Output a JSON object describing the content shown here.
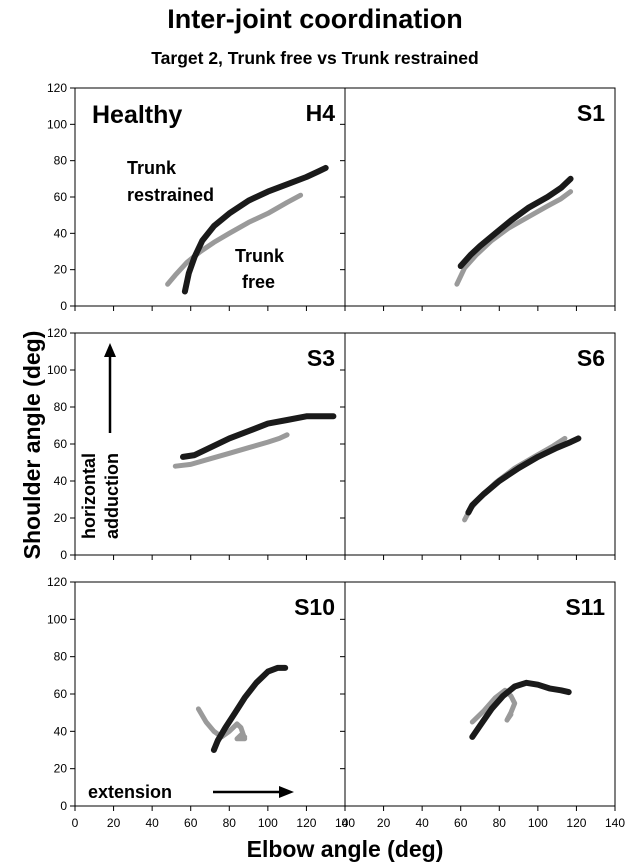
{
  "title": "Inter-joint coordination",
  "subtitle": "Target 2, Trunk free vs Trunk restrained",
  "chart_data": {
    "type": "line",
    "xlabel": "Elbow angle (deg)",
    "ylabel": "Shoulder angle (deg)",
    "xlim": [
      0,
      140
    ],
    "ylim": [
      0,
      120
    ],
    "xticks": [
      "0",
      "20",
      "40",
      "60",
      "80",
      "100",
      "120",
      "140"
    ],
    "yticks": [
      "0",
      "20",
      "40",
      "60",
      "80",
      "100",
      "120"
    ],
    "colors": {
      "trunk_restrained": "#1a1a1a",
      "trunk_free": "#9a9a9a"
    },
    "panels": [
      {
        "label": "H4",
        "annotations": {
          "group": "Healthy",
          "restrained": [
            "Trunk",
            "restrained"
          ],
          "free": [
            "Trunk",
            "free"
          ]
        },
        "series": [
          {
            "key": "trunk_restrained",
            "x": [
              57,
              59,
              62,
              66,
              72,
              80,
              90,
              100,
              110,
              120,
              126,
              130
            ],
            "y": [
              8,
              18,
              27,
              36,
              44,
              51,
              58,
              63,
              67,
              71,
              74,
              76
            ]
          },
          {
            "key": "trunk_free",
            "x": [
              48,
              52,
              58,
              65,
              72,
              80,
              90,
              100,
              110,
              117
            ],
            "y": [
              12,
              17,
              24,
              30,
              35,
              40,
              46,
              51,
              57,
              61
            ]
          }
        ]
      },
      {
        "label": "S1",
        "series": [
          {
            "key": "trunk_restrained",
            "x": [
              60,
              65,
              70,
              78,
              86,
              95,
              105,
              112,
              117
            ],
            "y": [
              22,
              28,
              33,
              40,
              47,
              54,
              60,
              65,
              70
            ]
          },
          {
            "key": "trunk_free",
            "x": [
              58,
              62,
              68,
              76,
              85,
              95,
              105,
              112,
              117
            ],
            "y": [
              12,
              21,
              28,
              36,
              43,
              49,
              55,
              59,
              63
            ]
          }
        ]
      },
      {
        "label": "S3",
        "annotations": {
          "direction": [
            "horizontal",
            "adduction"
          ]
        },
        "series": [
          {
            "key": "trunk_restrained",
            "x": [
              56,
              62,
              70,
              80,
              90,
              100,
              110,
              120,
              128,
              134
            ],
            "y": [
              53,
              54,
              58,
              63,
              67,
              71,
              73,
              75,
              75,
              75
            ]
          },
          {
            "key": "trunk_free",
            "x": [
              52,
              60,
              70,
              80,
              90,
              100,
              106,
              110
            ],
            "y": [
              48,
              49,
              52,
              55,
              58,
              61,
              63,
              65
            ]
          }
        ]
      },
      {
        "label": "S6",
        "series": [
          {
            "key": "trunk_restrained",
            "x": [
              64,
              66,
              72,
              80,
              90,
              100,
              110,
              117,
              121
            ],
            "y": [
              23,
              27,
              33,
              40,
              47,
              53,
              58,
              61,
              63
            ]
          },
          {
            "key": "trunk_free",
            "x": [
              62,
              65,
              70,
              78,
              88,
              98,
              108,
              114
            ],
            "y": [
              19,
              25,
              31,
              39,
              47,
              53,
              59,
              63
            ]
          }
        ]
      },
      {
        "label": "S10",
        "annotations": {
          "direction": "extension"
        },
        "series": [
          {
            "key": "trunk_restrained",
            "x": [
              72,
              74,
              78,
              83,
              88,
              94,
              100,
              105,
              109
            ],
            "y": [
              30,
              35,
              42,
              50,
              58,
              66,
              72,
              74,
              74
            ]
          },
          {
            "key": "trunk_free",
            "x": [
              64,
              68,
              72,
              76,
              80,
              84,
              86,
              88,
              84,
              86,
              88
            ],
            "y": [
              52,
              45,
              40,
              37,
              40,
              44,
              42,
              36,
              36,
              38,
              37
            ]
          }
        ]
      },
      {
        "label": "S11",
        "series": [
          {
            "key": "trunk_restrained",
            "x": [
              66,
              70,
              76,
              82,
              88,
              94,
              100,
              106,
              112,
              116
            ],
            "y": [
              37,
              43,
              52,
              59,
              64,
              66,
              65,
              63,
              62,
              61
            ]
          },
          {
            "key": "trunk_free",
            "x": [
              66,
              72,
              78,
              83,
              86,
              88,
              86,
              84,
              86
            ],
            "y": [
              45,
              51,
              58,
              62,
              59,
              55,
              50,
              46,
              49
            ]
          }
        ]
      }
    ]
  }
}
